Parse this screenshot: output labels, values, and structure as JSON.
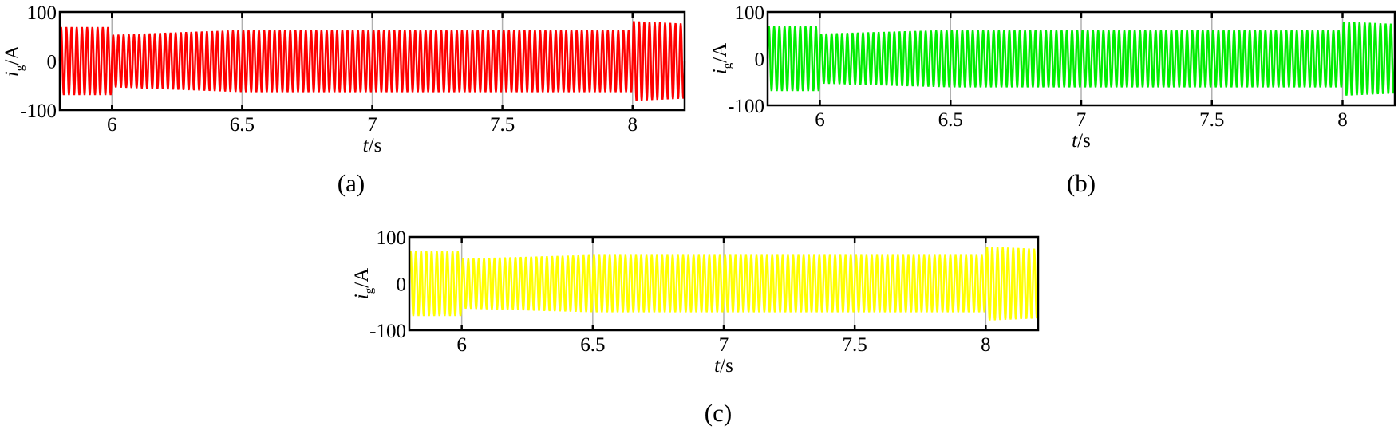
{
  "chart_data": [
    {
      "type": "line",
      "panel": "(a)",
      "xlabel": {
        "var": "t",
        "unit": "/s"
      },
      "ylabel": {
        "var": "i",
        "sub": "g",
        "unit": "/A"
      },
      "xlim": [
        5.8,
        8.2
      ],
      "ylim": [
        -100,
        100
      ],
      "xticks": [
        "6",
        "6.5",
        "7",
        "7.5",
        "8"
      ],
      "xtick_values": [
        6,
        6.5,
        7,
        7.5,
        8
      ],
      "yticks": [
        "100",
        "0",
        "-100"
      ],
      "ytick_values": [
        100,
        0,
        -100
      ],
      "grid": "vertical",
      "series": [
        {
          "color": "#ff0000",
          "frequency_hz": 50,
          "amplitude_envelope": {
            "t": [
              5.8,
              6.0,
              6.0,
              6.5,
              8.0,
              8.0,
              8.2
            ],
            "amp": [
              68,
              68,
              52,
              62,
              62,
              80,
              75
            ]
          }
        }
      ]
    },
    {
      "type": "line",
      "panel": "(b)",
      "xlabel": {
        "var": "t",
        "unit": "/s"
      },
      "ylabel": {
        "var": "i",
        "sub": "g",
        "unit": "/A"
      },
      "xlim": [
        5.8,
        8.2
      ],
      "ylim": [
        -100,
        100
      ],
      "xticks": [
        "6",
        "6.5",
        "7",
        "7.5",
        "8"
      ],
      "xtick_values": [
        6,
        6.5,
        7,
        7.5,
        8
      ],
      "yticks": [
        "100",
        "0",
        "-100"
      ],
      "ytick_values": [
        100,
        0,
        -100
      ],
      "grid": "vertical",
      "series": [
        {
          "color": "#00ee00",
          "frequency_hz": 50,
          "amplitude_envelope": {
            "t": [
              5.8,
              6.0,
              6.0,
              6.5,
              8.0,
              8.0,
              8.2
            ],
            "amp": [
              68,
              68,
              52,
              60,
              60,
              78,
              73
            ]
          }
        }
      ]
    },
    {
      "type": "line",
      "panel": "(c)",
      "xlabel": {
        "var": "t",
        "unit": "/s"
      },
      "ylabel": {
        "var": "i",
        "sub": "g",
        "unit": "/A"
      },
      "xlim": [
        5.8,
        8.2
      ],
      "ylim": [
        -100,
        100
      ],
      "xticks": [
        "6",
        "6.5",
        "7",
        "7.5",
        "8"
      ],
      "xtick_values": [
        6,
        6.5,
        7,
        7.5,
        8
      ],
      "yticks": [
        "100",
        "0",
        "-100"
      ],
      "ytick_values": [
        100,
        0,
        -100
      ],
      "grid": "vertical",
      "series": [
        {
          "color": "#ffff00",
          "frequency_hz": 50,
          "amplitude_envelope": {
            "t": [
              5.8,
              6.0,
              6.0,
              6.5,
              8.0,
              8.0,
              8.2
            ],
            "amp": [
              68,
              68,
              52,
              60,
              60,
              78,
              73
            ]
          }
        }
      ]
    }
  ]
}
